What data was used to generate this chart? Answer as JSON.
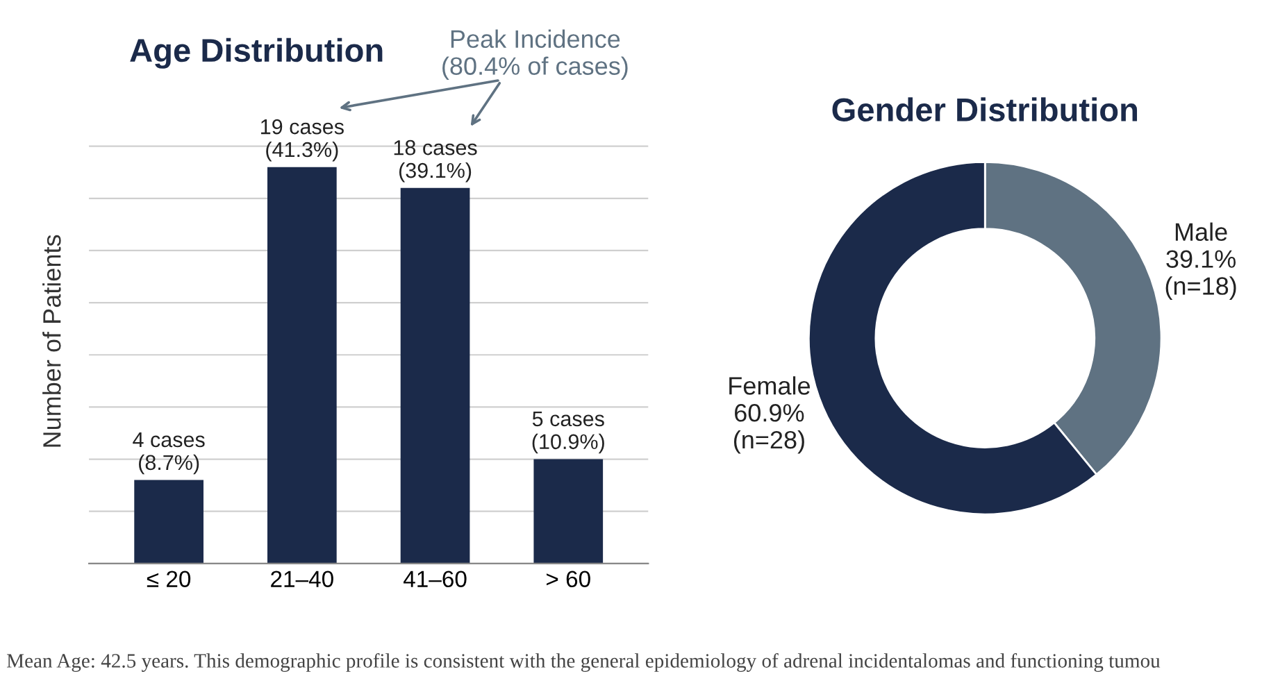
{
  "chart_data": [
    {
      "type": "bar",
      "title": "Age Distribution",
      "ylabel": "Number of Patients",
      "categories": [
        "≤ 20",
        "21–40",
        "41–60",
        "> 60"
      ],
      "values": [
        4,
        19,
        18,
        5
      ],
      "color": "#1b2a4a",
      "value_labels": [
        "4 cases\n(8.7%)",
        "19 cases\n(41.3%)",
        "18 cases\n(39.1%)",
        "5 cases\n(10.9%)"
      ],
      "grid": "y",
      "tick_labels": "x",
      "annotations": [
        "Peak Incidence\n(80.4% of cases)",
        "Mean Age: 42.5 years. This demographic profile is consistent with the general epidemiology of adrenal incidentalomas and functioning tumou"
      ]
    },
    {
      "type": "donut",
      "title": "Gender Distribution",
      "categories": [
        "Male",
        "Female"
      ],
      "values": [
        39.1,
        60.9
      ],
      "colors": [
        "#5f7282",
        "#1b2a4a"
      ],
      "value_labels": [
        "39.1%\n(n=18)",
        "60.9%\n(n=28)"
      ]
    }
  ]
}
